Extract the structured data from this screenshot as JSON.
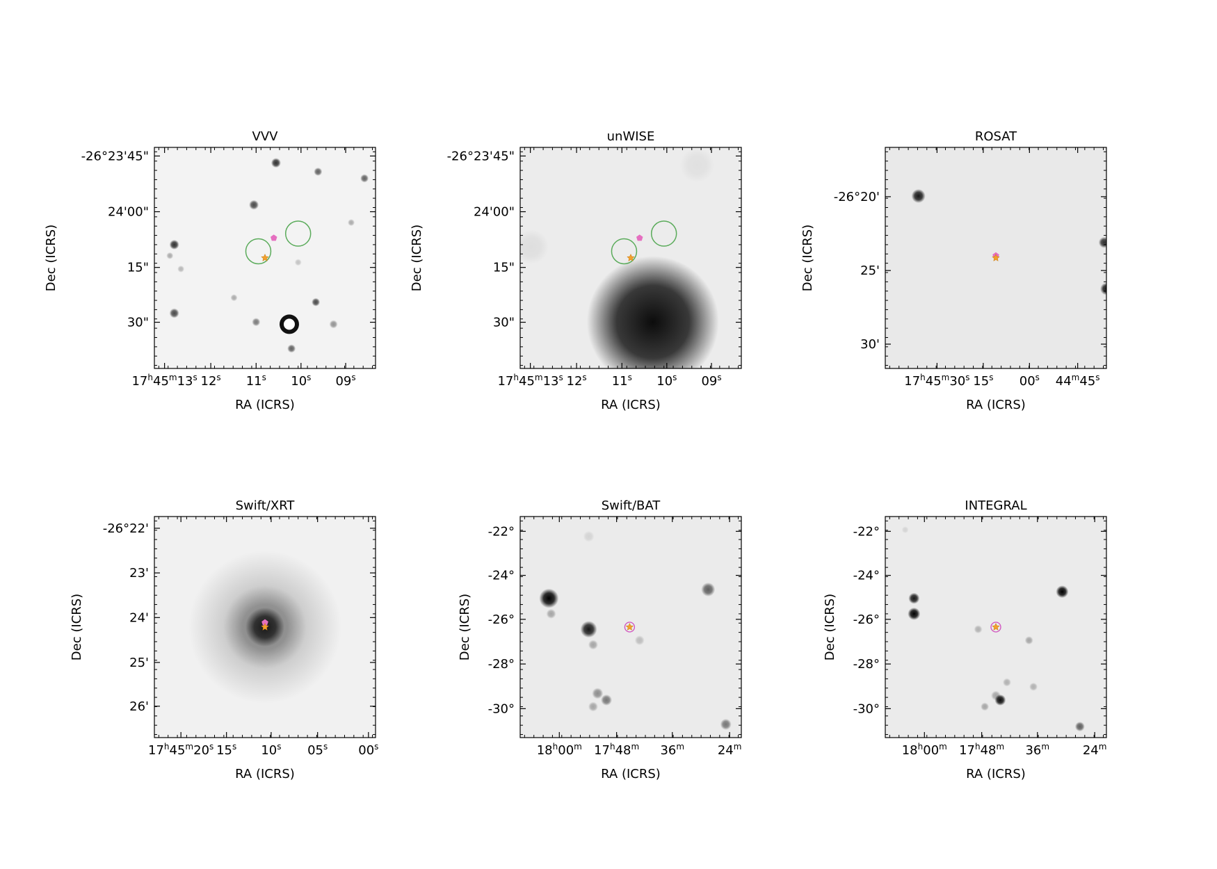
{
  "panels": [
    {
      "title": "VVV",
      "xlabel": "RA (ICRS)",
      "ylabel": "Dec (ICRS)",
      "yticks": [
        "-26°23'45\"",
        "24'00\"",
        "15\"",
        "30\""
      ],
      "xticks": [
        "17h45m13s",
        "12s",
        "11s",
        "10s",
        "09s"
      ]
    },
    {
      "title": "unWISE",
      "xlabel": "RA (ICRS)",
      "ylabel": "Dec (ICRS)",
      "yticks": [
        "-26°23'45\"",
        "24'00\"",
        "15\"",
        "30\""
      ],
      "xticks": [
        "17h45m13s",
        "12s",
        "11s",
        "10s",
        "09s"
      ]
    },
    {
      "title": "ROSAT",
      "xlabel": "RA (ICRS)",
      "ylabel": "Dec (ICRS)",
      "yticks": [
        "-26°20'",
        "25'",
        "30'"
      ],
      "xticks": [
        "17h45m30s",
        "15s",
        "00s",
        "44m45s"
      ]
    },
    {
      "title": "Swift/XRT",
      "xlabel": "RA (ICRS)",
      "ylabel": "Dec (ICRS)",
      "yticks": [
        "-26°22'",
        "23'",
        "24'",
        "25'",
        "26'"
      ],
      "xticks": [
        "17h45m20s",
        "15s",
        "10s",
        "05s",
        "00s"
      ]
    },
    {
      "title": "Swift/BAT",
      "xlabel": "RA (ICRS)",
      "ylabel": "Dec (ICRS)",
      "yticks": [
        "-22°",
        "-24°",
        "-26°",
        "-28°",
        "-30°"
      ],
      "xticks": [
        "18h00m",
        "17h48m",
        "36m",
        "24m"
      ]
    },
    {
      "title": "INTEGRAL",
      "xlabel": "RA (ICRS)",
      "ylabel": "Dec (ICRS)",
      "yticks": [
        "-22°",
        "-24°",
        "-26°",
        "-28°",
        "-30°"
      ],
      "xticks": [
        "18h00m",
        "17h48m",
        "36m",
        "24m"
      ]
    }
  ]
}
